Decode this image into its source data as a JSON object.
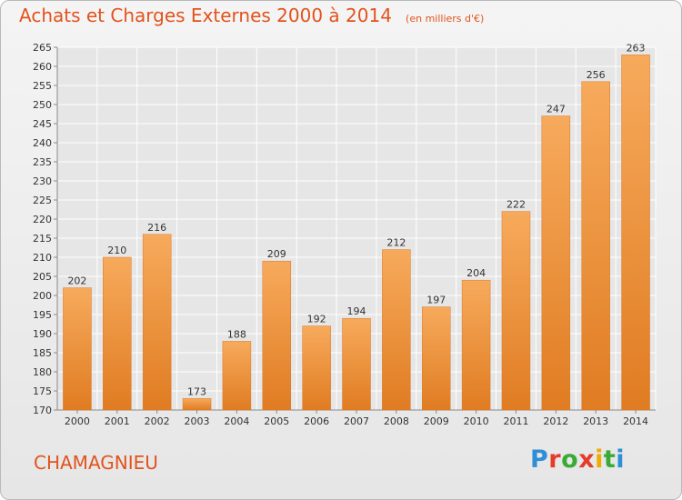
{
  "header": {
    "title": "Achats et Charges Externes 2000 à 2014",
    "unit": "(en milliers d'€)"
  },
  "footer": {
    "commune": "CHAMAGNIEU",
    "logo_text": "Proxiti",
    "logo_letter_colors": [
      "#2f8fd6",
      "#e53b2c",
      "#3aaa35",
      "#e53b2c",
      "#f2a900",
      "#3aaa35",
      "#2f8fd6"
    ]
  },
  "colors": {
    "bar_light": "#f7aa5c",
    "bar_dark": "#e07c22",
    "grid": "#ffffff",
    "plot_bg": "#e6e6e6",
    "accent": "#e2531d"
  },
  "chart_data": {
    "type": "bar",
    "categories": [
      "2000",
      "2001",
      "2002",
      "2003",
      "2004",
      "2005",
      "2006",
      "2007",
      "2008",
      "2009",
      "2010",
      "2011",
      "2012",
      "2013",
      "2014"
    ],
    "values": [
      202,
      210,
      216,
      173,
      188,
      209,
      192,
      194,
      212,
      197,
      204,
      222,
      247,
      256,
      263
    ],
    "ylim": [
      170,
      265
    ],
    "yticks": [
      170,
      175,
      180,
      185,
      190,
      195,
      200,
      205,
      210,
      215,
      220,
      225,
      230,
      235,
      240,
      245,
      250,
      255,
      260,
      265
    ],
    "grid": true
  }
}
